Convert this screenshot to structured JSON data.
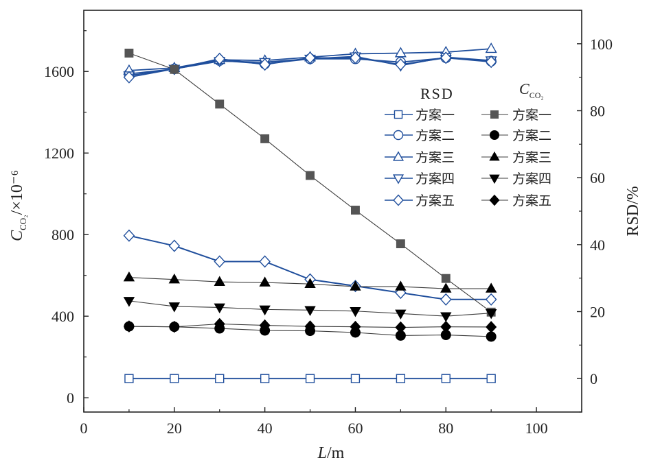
{
  "chart_data": {
    "type": "line",
    "xlabel": {
      "var": "L",
      "unit": "/m"
    },
    "ylabel_left": {
      "var": "C",
      "sub": "CO₂",
      "unit": "/×10⁻⁶"
    },
    "ylabel_right": "RSD/%",
    "xlim": [
      0,
      110
    ],
    "ylim_left": [
      -70,
      1900
    ],
    "ylim_right": [
      -10,
      110
    ],
    "xticks": [
      0,
      20,
      40,
      60,
      80,
      100
    ],
    "yticks_left": [
      0,
      400,
      800,
      1200,
      1600
    ],
    "yticks_right": [
      0,
      20,
      40,
      60,
      80,
      100
    ],
    "x": [
      10,
      20,
      30,
      40,
      50,
      60,
      70,
      80,
      90
    ],
    "legend": {
      "head_rsd": "RSD",
      "head_c": {
        "var": "C",
        "sub": "CO₂"
      },
      "labels": [
        "方案一",
        "方案二",
        "方案三",
        "方案四",
        "方案五"
      ]
    },
    "colors": {
      "rsd": "#1f4e9c",
      "conc_line": "#3c3c3c",
      "conc_marker": "#000000",
      "scheme1_conc": "#555555"
    },
    "rsd_series": [
      {
        "name": "方案一",
        "axis": "right",
        "marker": "square-open",
        "values": [
          0,
          0,
          0,
          0,
          0,
          0,
          0,
          0,
          0
        ]
      },
      {
        "name": "方案二",
        "axis": "right",
        "marker": "circle-open",
        "values": [
          91,
          92.5,
          95,
          94,
          95.5,
          95.5,
          94.5,
          95.8,
          94.8
        ]
      },
      {
        "name": "方案三",
        "axis": "right",
        "marker": "triangle-up-open",
        "values": [
          92,
          92.8,
          95.2,
          95,
          96,
          97,
          97.2,
          97.5,
          98.5
        ]
      },
      {
        "name": "方案四",
        "axis": "right",
        "marker": "triangle-down-open",
        "values": [
          90.5,
          92.5,
          94.8,
          94.5,
          95.5,
          96.2,
          93.5,
          96,
          95
        ]
      },
      {
        "name": "方案五",
        "axis": "right",
        "marker": "diamond-open",
        "values": [
          90,
          92.5,
          95.5,
          93.8,
          95.8,
          95.8,
          93.8,
          95.8,
          94.6
        ]
      }
    ],
    "conc_series": [
      {
        "name": "方案一",
        "axis": "left",
        "marker": "square-filled",
        "values": [
          1690,
          1610,
          1440,
          1270,
          1090,
          920,
          755,
          585,
          420
        ]
      },
      {
        "name": "方案二",
        "axis": "left",
        "marker": "circle-filled",
        "values": [
          350,
          348,
          340,
          330,
          328,
          320,
          305,
          308,
          300
        ]
      },
      {
        "name": "方案三",
        "axis": "left",
        "marker": "triangle-up-filled",
        "values": [
          590,
          580,
          568,
          565,
          558,
          545,
          545,
          535,
          535
        ]
      },
      {
        "name": "方案四",
        "axis": "left",
        "marker": "triangle-down-filled",
        "values": [
          475,
          448,
          443,
          433,
          430,
          425,
          413,
          400,
          415
        ]
      },
      {
        "name": "方案五",
        "axis": "left",
        "marker": "diamond-filled",
        "values": [
          350,
          348,
          362,
          355,
          350,
          348,
          345,
          348,
          347
        ]
      }
    ],
    "rsd_scheme5_low": {
      "name": "方案五",
      "axis": "left",
      "marker": "diamond-open",
      "values": [
        795,
        745,
        668,
        668,
        580,
        548,
        515,
        482,
        482
      ]
    }
  }
}
